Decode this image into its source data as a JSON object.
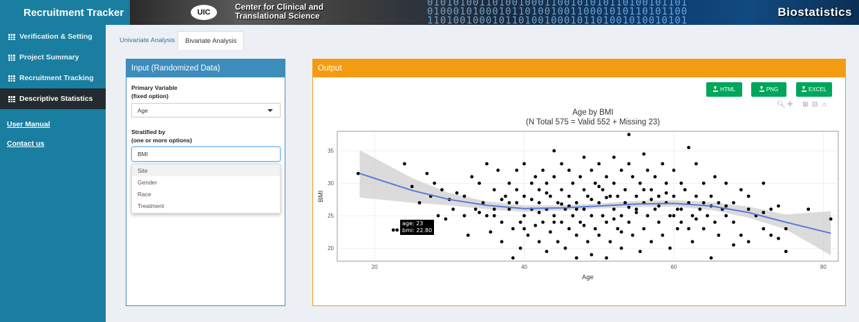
{
  "header": {
    "app_title": "Recruitment Tracker",
    "logo_text": "UIC",
    "center_line1": "Center for Clinical and",
    "center_line2": "Translational Science",
    "banner_title": "Biostatistics"
  },
  "sidebar": {
    "items": [
      {
        "label": "Verification & Setting"
      },
      {
        "label": "Project Summary"
      },
      {
        "label": "Recruitment Tracking"
      },
      {
        "label": "Descriptive Statistics"
      }
    ],
    "links": [
      {
        "label": "User Manual"
      },
      {
        "label": "Contact us"
      }
    ]
  },
  "tabs": [
    {
      "label": "Univariate Analysis"
    },
    {
      "label": "Bivariate Analysis"
    }
  ],
  "input_panel": {
    "title": "Input (Randomized Data)",
    "primary_label_1": "Primary Variable",
    "primary_label_2": "(fixed option)",
    "primary_value": "Age",
    "strat_label_1": "Stratified by",
    "strat_label_2": "(one or more options)",
    "strat_value": "BMI",
    "options": [
      "Site",
      "Gender",
      "Race",
      "Treatment"
    ]
  },
  "output_panel": {
    "title": "Output",
    "buttons": [
      "HTML",
      "PNG",
      "EXCEL"
    ]
  },
  "tooltip": {
    "line1": "age: 23",
    "line2": "bmi: 22.80"
  },
  "colors": {
    "accent_blue": "#3c8dbc",
    "accent_orange": "#f39c12",
    "btn_green": "#00a65a",
    "sidebar": "#1a7ea0"
  },
  "chart_data": {
    "type": "scatter",
    "title": "Age by BMI",
    "subtitle": "(N Total 575 = Valid 552 + Missing 23)",
    "xlabel": "Age",
    "ylabel": "BMI",
    "xlim": [
      15,
      82
    ],
    "ylim": [
      18,
      38
    ],
    "xticks": [
      20,
      40,
      60,
      80
    ],
    "yticks": [
      20,
      25,
      30,
      35
    ],
    "grid": true,
    "smooth_fit": {
      "x": [
        18,
        25,
        30,
        35,
        40,
        45,
        50,
        55,
        60,
        65,
        70,
        75,
        81
      ],
      "y": [
        31.5,
        28.9,
        27.5,
        26.6,
        26.1,
        26.2,
        26.5,
        26.8,
        26.9,
        26.5,
        25.5,
        24.0,
        22.3
      ],
      "lower": [
        27.8,
        27.0,
        26.6,
        26.0,
        25.6,
        25.8,
        26.1,
        26.3,
        26.4,
        25.9,
        24.7,
        22.9,
        18.9
      ],
      "upper": [
        35.1,
        30.8,
        28.5,
        27.2,
        26.6,
        26.6,
        26.9,
        27.3,
        27.4,
        27.1,
        26.4,
        25.2,
        25.7
      ]
    },
    "points": [
      [
        17.8,
        31.5
      ],
      [
        22.5,
        22.8
      ],
      [
        23,
        22.8
      ],
      [
        24,
        33
      ],
      [
        25,
        29.5
      ],
      [
        26,
        27
      ],
      [
        27,
        31.5
      ],
      [
        27.5,
        28
      ],
      [
        28,
        30
      ],
      [
        28.5,
        25
      ],
      [
        29,
        29
      ],
      [
        29.5,
        24.5
      ],
      [
        30,
        27.5
      ],
      [
        30.5,
        26
      ],
      [
        31,
        28.5
      ],
      [
        32,
        28
      ],
      [
        32,
        25
      ],
      [
        32.5,
        22
      ],
      [
        33,
        31
      ],
      [
        33.5,
        26
      ],
      [
        34,
        30
      ],
      [
        34.5,
        27
      ],
      [
        35,
        33
      ],
      [
        35,
        25
      ],
      [
        35.5,
        22.5
      ],
      [
        36,
        29
      ],
      [
        36,
        26
      ],
      [
        36.5,
        32
      ],
      [
        37,
        24
      ],
      [
        37,
        21
      ],
      [
        37.5,
        28
      ],
      [
        38,
        30
      ],
      [
        38,
        26
      ],
      [
        38.5,
        23
      ],
      [
        38.5,
        18.5
      ],
      [
        39,
        32
      ],
      [
        39,
        27
      ],
      [
        39.5,
        24
      ],
      [
        39.5,
        20
      ],
      [
        40,
        33
      ],
      [
        40,
        28
      ],
      [
        40,
        25
      ],
      [
        40.5,
        22
      ],
      [
        41,
        30
      ],
      [
        41,
        26
      ],
      [
        41.5,
        31
      ],
      [
        41.5,
        23.5
      ],
      [
        42,
        29
      ],
      [
        42,
        27
      ],
      [
        42,
        21
      ],
      [
        42.5,
        32
      ],
      [
        42.5,
        24
      ],
      [
        43,
        30
      ],
      [
        43,
        26
      ],
      [
        43,
        19.5
      ],
      [
        43.5,
        28
      ],
      [
        43.5,
        22.5
      ],
      [
        44,
        35
      ],
      [
        44,
        31
      ],
      [
        44,
        25
      ],
      [
        44.5,
        27
      ],
      [
        44.5,
        21
      ],
      [
        45,
        33
      ],
      [
        45,
        29
      ],
      [
        45,
        24
      ],
      [
        45.5,
        26
      ],
      [
        45.5,
        20
      ],
      [
        46,
        32
      ],
      [
        46,
        28
      ],
      [
        46,
        23
      ],
      [
        46.5,
        30
      ],
      [
        46.5,
        25
      ],
      [
        47,
        27
      ],
      [
        47,
        22
      ],
      [
        47,
        18.5
      ],
      [
        47.5,
        31
      ],
      [
        47.5,
        24
      ],
      [
        48,
        34
      ],
      [
        48,
        29
      ],
      [
        48,
        26
      ],
      [
        48.5,
        21
      ],
      [
        48.5,
        28
      ],
      [
        49,
        32
      ],
      [
        49,
        25
      ],
      [
        49,
        19
      ],
      [
        49.5,
        30
      ],
      [
        49.5,
        23
      ],
      [
        50,
        27
      ],
      [
        50,
        33
      ],
      [
        50,
        22
      ],
      [
        50.5,
        29
      ],
      [
        50.5,
        25
      ],
      [
        51,
        31
      ],
      [
        51,
        18.5
      ],
      [
        51,
        24
      ],
      [
        51.5,
        28
      ],
      [
        51.5,
        21
      ],
      [
        52,
        34
      ],
      [
        52,
        30
      ],
      [
        52,
        26
      ],
      [
        52.5,
        23
      ],
      [
        52.5,
        28
      ],
      [
        53,
        32
      ],
      [
        53,
        25
      ],
      [
        53,
        20
      ],
      [
        53.5,
        29
      ],
      [
        53.5,
        27
      ],
      [
        54,
        37.5
      ],
      [
        54,
        33
      ],
      [
        54,
        24
      ],
      [
        54.5,
        31
      ],
      [
        54.5,
        22
      ],
      [
        55,
        28
      ],
      [
        55,
        26
      ],
      [
        55.5,
        30
      ],
      [
        55.5,
        19.5
      ],
      [
        56,
        34.5
      ],
      [
        56,
        27
      ],
      [
        56,
        23
      ],
      [
        56.5,
        32
      ],
      [
        56.5,
        25
      ],
      [
        57,
        29
      ],
      [
        57,
        21
      ],
      [
        57.5,
        31
      ],
      [
        57.5,
        26
      ],
      [
        58,
        28
      ],
      [
        58,
        24
      ],
      [
        58.5,
        33
      ],
      [
        58.5,
        22
      ],
      [
        59,
        30
      ],
      [
        59,
        27
      ],
      [
        59.5,
        25
      ],
      [
        59.5,
        20
      ],
      [
        60,
        32
      ],
      [
        60,
        28
      ],
      [
        60.5,
        26
      ],
      [
        60.5,
        23
      ],
      [
        61,
        30
      ],
      [
        61,
        24
      ],
      [
        61.5,
        29
      ],
      [
        62,
        35.5
      ],
      [
        62,
        27
      ],
      [
        62.5,
        25
      ],
      [
        62.5,
        21
      ],
      [
        63,
        33
      ],
      [
        63,
        28
      ],
      [
        63.5,
        26
      ],
      [
        64,
        30
      ],
      [
        64,
        23
      ],
      [
        64.5,
        25
      ],
      [
        65,
        28
      ],
      [
        65,
        18.5
      ],
      [
        65.5,
        31
      ],
      [
        65.5,
        24
      ],
      [
        66,
        27
      ],
      [
        66,
        22
      ],
      [
        66.5,
        26
      ],
      [
        67,
        30
      ],
      [
        67,
        25
      ],
      [
        68,
        24
      ],
      [
        68,
        20.5
      ],
      [
        69,
        29
      ],
      [
        69,
        22
      ],
      [
        70,
        26
      ],
      [
        70,
        21
      ],
      [
        71,
        25
      ],
      [
        72,
        30
      ],
      [
        72,
        23
      ],
      [
        73,
        26
      ],
      [
        73,
        22
      ],
      [
        74,
        21.5
      ],
      [
        75,
        19.5
      ],
      [
        75,
        23
      ],
      [
        78,
        26
      ],
      [
        81,
        24.5
      ],
      [
        34,
        25.5
      ],
      [
        38,
        27
      ],
      [
        41,
        27.5
      ],
      [
        44,
        24
      ],
      [
        46,
        26.5
      ],
      [
        49,
        27.5
      ],
      [
        52,
        24.5
      ],
      [
        55,
        25.5
      ],
      [
        58,
        26.5
      ],
      [
        61,
        26
      ],
      [
        64,
        27
      ],
      [
        67,
        26.5
      ],
      [
        36,
        25
      ],
      [
        40,
        23
      ],
      [
        43,
        28.5
      ],
      [
        47,
        26
      ],
      [
        50,
        29.5
      ],
      [
        53,
        22.5
      ],
      [
        56,
        29
      ],
      [
        59,
        28.5
      ],
      [
        62,
        23
      ],
      [
        65,
        26.5
      ],
      [
        68,
        27
      ],
      [
        45,
        26.8
      ],
      [
        48,
        23.5
      ],
      [
        51,
        27.8
      ],
      [
        54,
        26.3
      ],
      [
        57,
        27.5
      ],
      [
        60,
        25
      ],
      [
        63,
        24.5
      ],
      [
        42,
        25.5
      ],
      [
        39,
        29
      ],
      [
        37,
        27.5
      ],
      [
        70,
        28
      ],
      [
        72,
        25.5
      ],
      [
        74,
        26.5
      ]
    ]
  }
}
